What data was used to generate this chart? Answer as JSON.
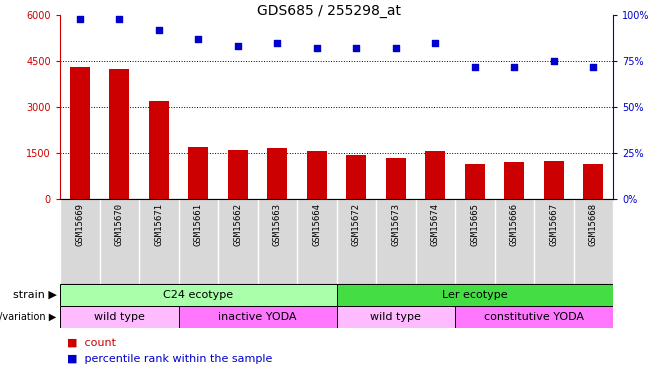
{
  "title": "GDS685 / 255298_at",
  "samples": [
    "GSM15669",
    "GSM15670",
    "GSM15671",
    "GSM15661",
    "GSM15662",
    "GSM15663",
    "GSM15664",
    "GSM15672",
    "GSM15673",
    "GSM15674",
    "GSM15665",
    "GSM15666",
    "GSM15667",
    "GSM15668"
  ],
  "counts": [
    4300,
    4250,
    3200,
    1700,
    1600,
    1650,
    1550,
    1450,
    1350,
    1550,
    1150,
    1200,
    1250,
    1150
  ],
  "percentiles": [
    98,
    98,
    92,
    87,
    83,
    85,
    82,
    82,
    82,
    85,
    72,
    72,
    75,
    72
  ],
  "bar_color": "#cc0000",
  "dot_color": "#0000cc",
  "ylim_left": [
    0,
    6000
  ],
  "ylim_right": [
    0,
    100
  ],
  "yticks_left": [
    0,
    1500,
    3000,
    4500,
    6000
  ],
  "yticks_right": [
    0,
    25,
    50,
    75,
    100
  ],
  "grid_values": [
    1500,
    3000,
    4500
  ],
  "strain_groups": [
    {
      "text": "C24 ecotype",
      "start": 0,
      "end": 7,
      "color": "#aaffaa"
    },
    {
      "text": "Ler ecotype",
      "start": 7,
      "end": 14,
      "color": "#44dd44"
    }
  ],
  "genotype_groups": [
    {
      "text": "wild type",
      "start": 0,
      "end": 3,
      "color": "#ffbbff"
    },
    {
      "text": "inactive YODA",
      "start": 3,
      "end": 7,
      "color": "#ff77ff"
    },
    {
      "text": "wild type",
      "start": 7,
      "end": 10,
      "color": "#ffbbff"
    },
    {
      "text": "constitutive YODA",
      "start": 10,
      "end": 14,
      "color": "#ff77ff"
    }
  ],
  "strain_label": "strain",
  "genotype_label": "genotype/variation",
  "legend_items": [
    {
      "label": "count",
      "color": "#cc0000"
    },
    {
      "label": "percentile rank within the sample",
      "color": "#0000cc"
    }
  ],
  "title_fontsize": 10,
  "tick_fontsize": 7,
  "annotation_fontsize": 8,
  "bar_width": 0.5
}
